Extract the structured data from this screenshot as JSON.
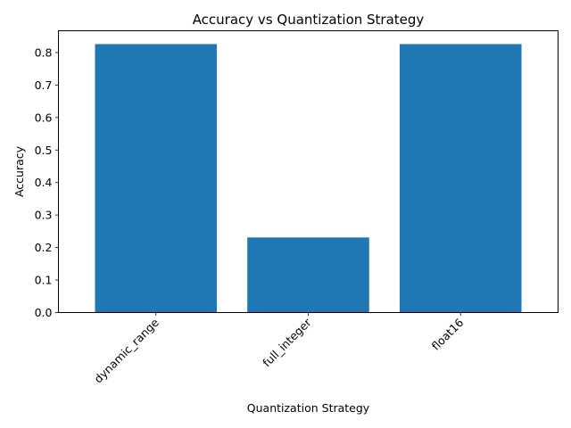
{
  "chart_data": {
    "type": "bar",
    "title": "Accuracy vs Quantization Strategy",
    "xlabel": "Quantization Strategy",
    "ylabel": "Accuracy",
    "categories": [
      "dynamic_range",
      "full_integer",
      "float16"
    ],
    "values": [
      0.826,
      0.231,
      0.826
    ],
    "ylim": [
      0,
      0.867
    ],
    "yticks": [
      "0.0",
      "0.1",
      "0.2",
      "0.3",
      "0.4",
      "0.5",
      "0.6",
      "0.7",
      "0.8"
    ],
    "xtick_rotation_deg": 45,
    "bar_color": "#1f77b4",
    "grid": false,
    "legend": "none"
  }
}
